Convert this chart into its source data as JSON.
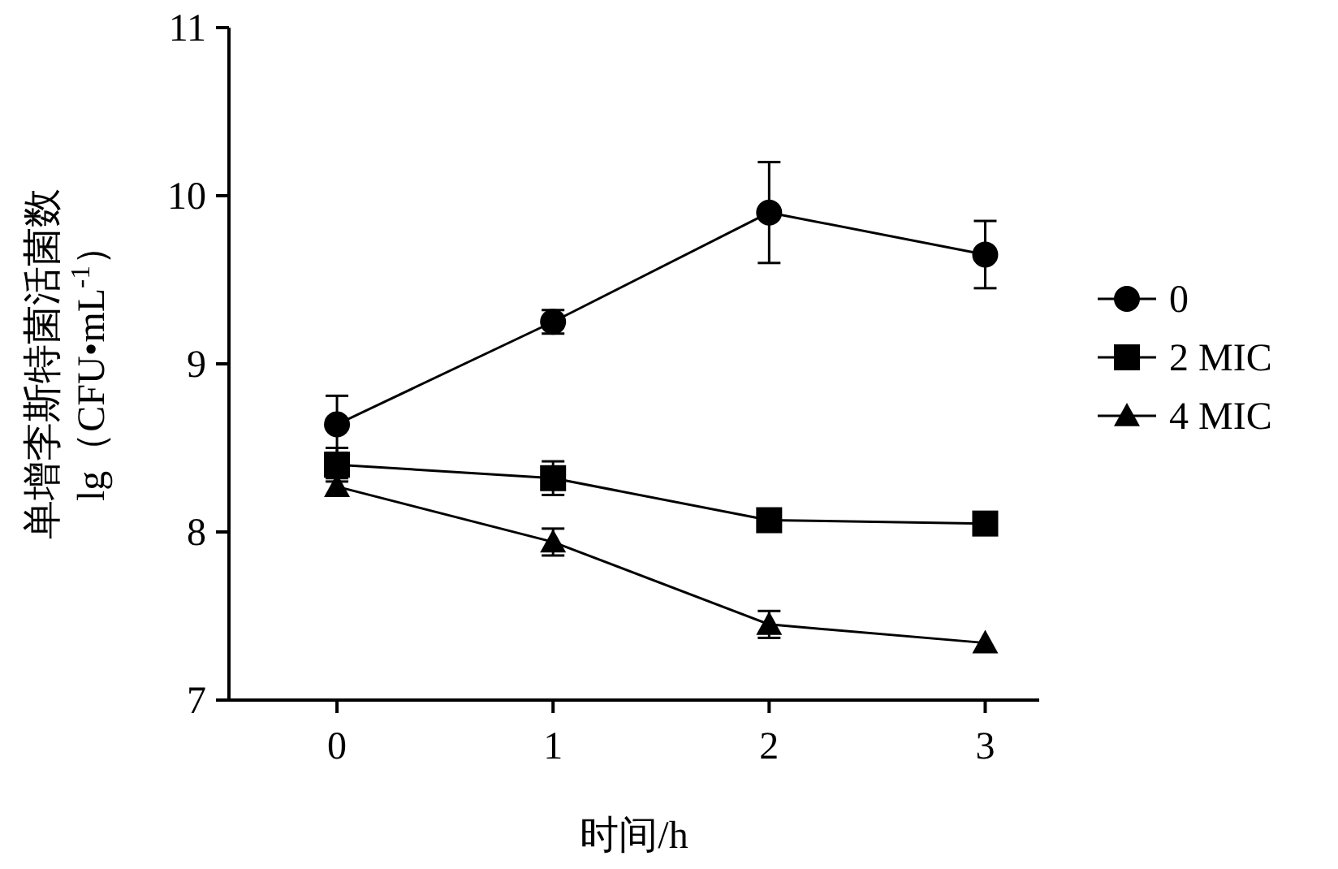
{
  "chart_data": {
    "type": "line",
    "xlabel": "时间/h",
    "ylabel": "单增李斯特菌活菌数 lg（CFU•mL$^{-1}$）",
    "x": [
      0,
      1,
      2,
      3
    ],
    "xlim": [
      -0.5,
      3.25
    ],
    "xticks": [
      0,
      1,
      2,
      3
    ],
    "ylim": [
      7,
      11
    ],
    "yticks": [
      7,
      8,
      9,
      10,
      11
    ],
    "legend": "right",
    "line_style": "solid",
    "series": [
      {
        "name": "0",
        "color": "#000000",
        "marker": "circle",
        "values": [
          8.64,
          9.25,
          9.9,
          9.65
        ],
        "errors": [
          0.17,
          0.07,
          0.3,
          0.2
        ]
      },
      {
        "name": "2 MIC",
        "color": "#000000",
        "marker": "square",
        "values": [
          8.4,
          8.32,
          8.07,
          8.05
        ],
        "errors": [
          0.1,
          0.1,
          null,
          null
        ]
      },
      {
        "name": "4 MIC",
        "color": "#000000",
        "marker": "triangle",
        "values": [
          8.27,
          7.94,
          7.45,
          7.34
        ],
        "errors": [
          0.05,
          0.08,
          0.08,
          null
        ]
      }
    ]
  }
}
